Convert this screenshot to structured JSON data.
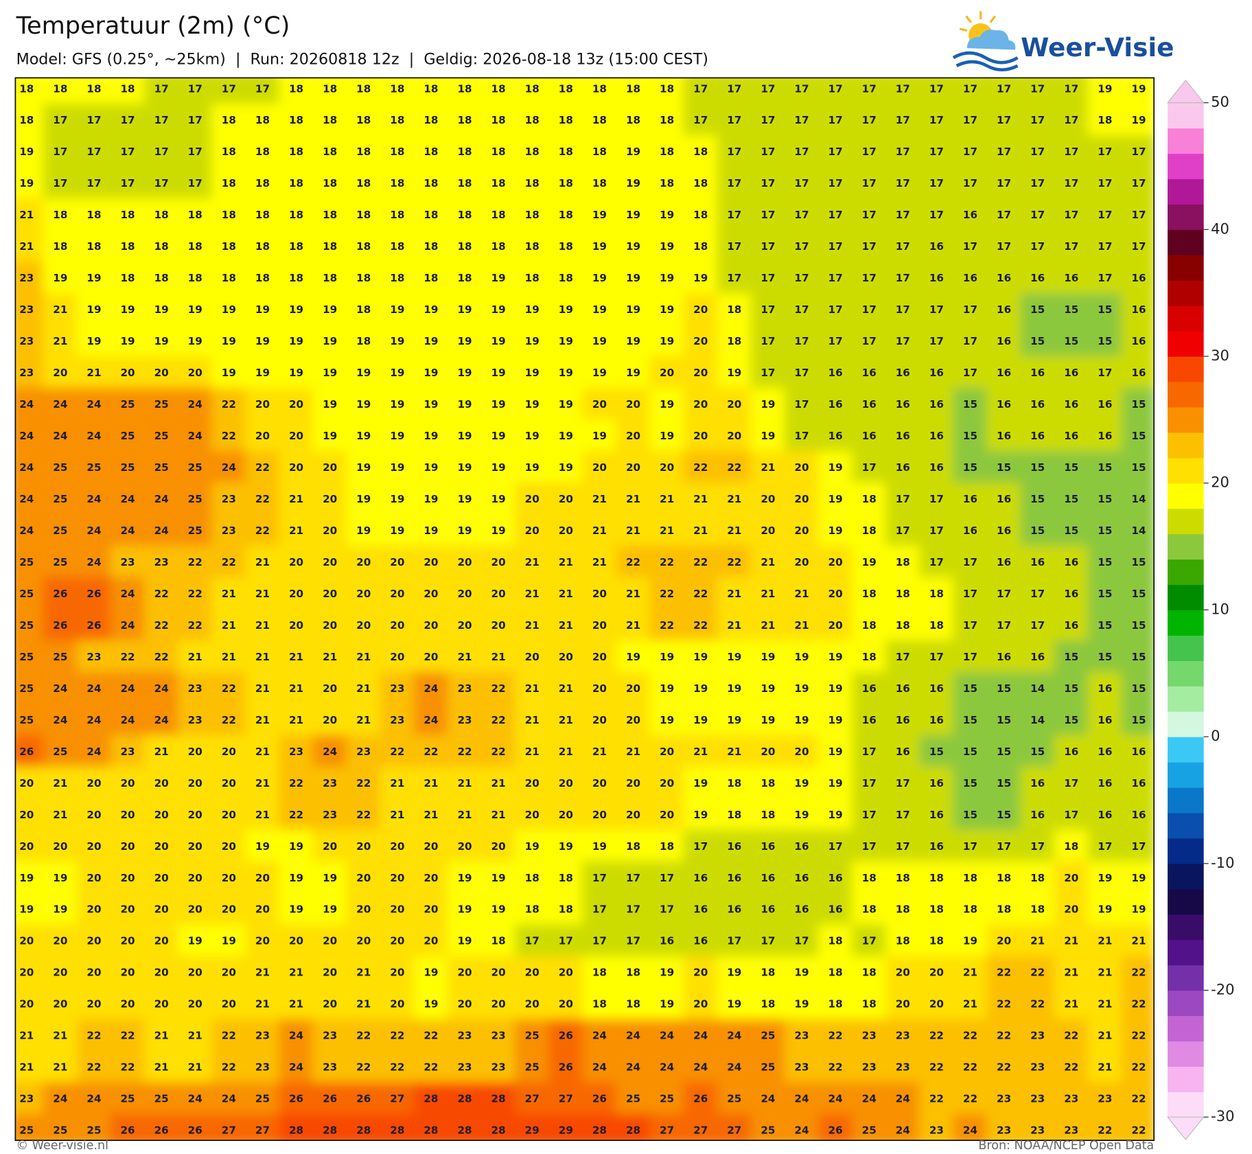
{
  "chart_data": {
    "type": "grid-map",
    "title": "Temperatuur (2m) (°C)",
    "subtitle": "Model: GFS (0.25°, ~25km)  |  Run: 20260818 12z  |  Geldig: 2026-08-18 13z (15:00 CEST)",
    "values": [
      [
        18,
        18,
        18,
        18,
        17,
        17,
        17,
        17,
        18,
        18,
        18,
        18,
        18,
        18,
        18,
        18,
        18,
        18,
        18,
        18,
        17,
        17,
        17,
        17,
        17,
        17,
        17,
        17,
        17,
        17,
        17,
        17,
        19,
        19
      ],
      [
        18,
        17,
        17,
        17,
        17,
        17,
        18,
        18,
        18,
        18,
        18,
        18,
        18,
        18,
        18,
        18,
        18,
        18,
        18,
        18,
        17,
        17,
        17,
        17,
        17,
        17,
        17,
        17,
        17,
        17,
        17,
        17,
        18,
        19
      ],
      [
        19,
        17,
        17,
        17,
        17,
        17,
        18,
        18,
        18,
        18,
        18,
        18,
        18,
        18,
        18,
        18,
        18,
        18,
        19,
        18,
        18,
        17,
        17,
        17,
        17,
        17,
        17,
        17,
        17,
        17,
        17,
        17,
        17,
        17
      ],
      [
        19,
        17,
        17,
        17,
        17,
        17,
        18,
        18,
        18,
        18,
        18,
        18,
        18,
        18,
        18,
        18,
        18,
        18,
        19,
        18,
        18,
        17,
        17,
        17,
        17,
        17,
        17,
        17,
        17,
        17,
        17,
        17,
        17,
        17
      ],
      [
        21,
        18,
        18,
        18,
        18,
        18,
        18,
        18,
        18,
        18,
        18,
        18,
        18,
        18,
        18,
        18,
        18,
        19,
        19,
        19,
        18,
        17,
        17,
        17,
        17,
        17,
        17,
        17,
        16,
        17,
        17,
        17,
        17,
        17
      ],
      [
        21,
        18,
        18,
        18,
        18,
        18,
        18,
        18,
        18,
        18,
        18,
        18,
        18,
        18,
        18,
        18,
        18,
        19,
        19,
        19,
        18,
        17,
        17,
        17,
        17,
        17,
        17,
        16,
        17,
        17,
        17,
        17,
        17,
        17
      ],
      [
        23,
        19,
        19,
        18,
        18,
        18,
        18,
        18,
        18,
        18,
        18,
        18,
        18,
        18,
        19,
        18,
        18,
        19,
        19,
        19,
        19,
        17,
        17,
        17,
        17,
        17,
        17,
        16,
        16,
        16,
        16,
        16,
        17,
        16
      ],
      [
        23,
        21,
        19,
        19,
        19,
        19,
        19,
        19,
        19,
        19,
        18,
        19,
        19,
        19,
        19,
        19,
        19,
        19,
        19,
        19,
        20,
        18,
        17,
        17,
        17,
        17,
        17,
        17,
        17,
        16,
        15,
        15,
        15,
        16
      ],
      [
        23,
        21,
        19,
        19,
        19,
        19,
        19,
        19,
        19,
        19,
        18,
        19,
        19,
        19,
        19,
        19,
        19,
        19,
        19,
        19,
        20,
        18,
        17,
        17,
        17,
        17,
        17,
        17,
        17,
        16,
        15,
        15,
        15,
        16
      ],
      [
        23,
        20,
        21,
        20,
        20,
        20,
        19,
        19,
        19,
        19,
        19,
        19,
        19,
        19,
        19,
        19,
        19,
        19,
        19,
        20,
        20,
        19,
        17,
        17,
        16,
        16,
        16,
        16,
        17,
        16,
        16,
        16,
        17,
        16
      ],
      [
        24,
        24,
        24,
        25,
        25,
        24,
        22,
        20,
        20,
        19,
        19,
        19,
        19,
        19,
        19,
        19,
        19,
        20,
        20,
        19,
        20,
        20,
        19,
        17,
        16,
        16,
        16,
        16,
        15,
        16,
        16,
        16,
        16,
        15
      ],
      [
        24,
        24,
        24,
        25,
        25,
        24,
        22,
        20,
        20,
        19,
        19,
        19,
        19,
        19,
        19,
        19,
        19,
        19,
        20,
        19,
        20,
        20,
        19,
        17,
        16,
        16,
        16,
        16,
        15,
        16,
        16,
        16,
        16,
        15
      ],
      [
        24,
        25,
        25,
        25,
        25,
        25,
        24,
        22,
        20,
        20,
        19,
        19,
        19,
        19,
        19,
        19,
        19,
        20,
        20,
        20,
        22,
        22,
        21,
        20,
        19,
        17,
        16,
        16,
        15,
        15,
        15,
        15,
        15,
        15
      ],
      [
        24,
        25,
        24,
        24,
        24,
        25,
        23,
        22,
        21,
        20,
        19,
        19,
        19,
        19,
        19,
        20,
        20,
        21,
        21,
        21,
        21,
        21,
        20,
        20,
        19,
        18,
        17,
        17,
        16,
        16,
        15,
        15,
        15,
        14
      ],
      [
        24,
        25,
        24,
        24,
        24,
        25,
        23,
        22,
        21,
        20,
        19,
        19,
        19,
        19,
        19,
        20,
        20,
        21,
        21,
        21,
        21,
        21,
        20,
        20,
        19,
        18,
        17,
        17,
        16,
        16,
        15,
        15,
        15,
        14
      ],
      [
        25,
        25,
        24,
        23,
        23,
        22,
        22,
        21,
        20,
        20,
        20,
        20,
        20,
        20,
        20,
        21,
        21,
        21,
        22,
        22,
        22,
        22,
        21,
        20,
        20,
        19,
        18,
        17,
        17,
        16,
        16,
        16,
        15,
        15
      ],
      [
        25,
        26,
        26,
        24,
        22,
        22,
        21,
        21,
        20,
        20,
        20,
        20,
        20,
        20,
        20,
        21,
        21,
        20,
        21,
        22,
        22,
        21,
        21,
        21,
        20,
        18,
        18,
        18,
        17,
        17,
        17,
        16,
        15,
        15
      ],
      [
        25,
        26,
        26,
        24,
        22,
        22,
        21,
        21,
        20,
        20,
        20,
        20,
        20,
        20,
        20,
        21,
        21,
        20,
        21,
        22,
        22,
        21,
        21,
        21,
        20,
        18,
        18,
        18,
        17,
        17,
        17,
        16,
        15,
        15
      ],
      [
        25,
        25,
        23,
        22,
        22,
        21,
        21,
        21,
        21,
        21,
        21,
        20,
        20,
        21,
        21,
        20,
        20,
        20,
        19,
        19,
        19,
        19,
        19,
        19,
        19,
        18,
        17,
        17,
        17,
        16,
        16,
        15,
        15,
        15
      ],
      [
        25,
        24,
        24,
        24,
        24,
        23,
        22,
        21,
        21,
        20,
        21,
        23,
        24,
        23,
        22,
        21,
        21,
        20,
        20,
        19,
        19,
        19,
        19,
        19,
        19,
        16,
        16,
        16,
        15,
        15,
        14,
        15,
        16,
        15
      ],
      [
        25,
        24,
        24,
        24,
        24,
        23,
        22,
        21,
        21,
        20,
        21,
        23,
        24,
        23,
        22,
        21,
        21,
        20,
        20,
        19,
        19,
        19,
        19,
        19,
        19,
        16,
        16,
        16,
        15,
        15,
        14,
        15,
        16,
        15
      ],
      [
        26,
        25,
        24,
        23,
        21,
        20,
        20,
        21,
        23,
        24,
        23,
        22,
        22,
        22,
        22,
        21,
        21,
        21,
        21,
        20,
        21,
        21,
        20,
        20,
        19,
        17,
        16,
        15,
        15,
        15,
        15,
        16,
        16,
        16
      ],
      [
        20,
        21,
        20,
        20,
        20,
        20,
        20,
        21,
        22,
        23,
        22,
        21,
        21,
        21,
        21,
        20,
        20,
        20,
        20,
        20,
        19,
        18,
        18,
        19,
        19,
        17,
        17,
        16,
        15,
        15,
        16,
        17,
        16,
        16
      ],
      [
        20,
        21,
        20,
        20,
        20,
        20,
        20,
        21,
        22,
        23,
        22,
        21,
        21,
        21,
        21,
        20,
        20,
        20,
        20,
        20,
        19,
        18,
        18,
        19,
        19,
        17,
        17,
        16,
        15,
        15,
        16,
        17,
        16,
        16
      ],
      [
        20,
        20,
        20,
        20,
        20,
        20,
        20,
        19,
        19,
        20,
        20,
        20,
        20,
        20,
        20,
        19,
        19,
        19,
        18,
        18,
        17,
        16,
        16,
        16,
        17,
        17,
        17,
        16,
        17,
        17,
        17,
        18,
        17,
        17
      ],
      [
        19,
        19,
        20,
        20,
        20,
        20,
        20,
        20,
        19,
        19,
        20,
        20,
        20,
        19,
        19,
        18,
        18,
        17,
        17,
        17,
        16,
        16,
        16,
        16,
        16,
        18,
        18,
        18,
        18,
        18,
        18,
        20,
        19,
        19
      ],
      [
        19,
        19,
        20,
        20,
        20,
        20,
        20,
        20,
        19,
        19,
        20,
        20,
        20,
        19,
        19,
        18,
        18,
        17,
        17,
        17,
        16,
        16,
        16,
        16,
        16,
        18,
        18,
        18,
        18,
        18,
        18,
        20,
        19,
        19
      ],
      [
        20,
        20,
        20,
        20,
        20,
        19,
        19,
        20,
        20,
        20,
        20,
        20,
        20,
        19,
        18,
        17,
        17,
        17,
        17,
        16,
        16,
        17,
        17,
        17,
        18,
        17,
        18,
        18,
        19,
        20,
        21,
        21,
        21,
        21
      ],
      [
        20,
        20,
        20,
        20,
        20,
        20,
        20,
        21,
        21,
        20,
        21,
        20,
        19,
        20,
        20,
        20,
        20,
        18,
        18,
        19,
        20,
        19,
        18,
        19,
        18,
        18,
        20,
        20,
        21,
        22,
        22,
        21,
        21,
        22
      ],
      [
        20,
        20,
        20,
        20,
        20,
        20,
        20,
        21,
        21,
        20,
        21,
        20,
        19,
        20,
        20,
        20,
        20,
        18,
        18,
        19,
        20,
        19,
        18,
        19,
        18,
        18,
        20,
        20,
        21,
        22,
        22,
        21,
        21,
        22
      ],
      [
        21,
        21,
        22,
        22,
        21,
        21,
        22,
        23,
        24,
        23,
        22,
        22,
        22,
        23,
        23,
        25,
        26,
        24,
        24,
        24,
        24,
        24,
        25,
        23,
        22,
        23,
        23,
        22,
        22,
        22,
        23,
        22,
        21,
        22
      ],
      [
        21,
        21,
        22,
        22,
        21,
        21,
        22,
        23,
        24,
        23,
        22,
        22,
        22,
        23,
        23,
        25,
        26,
        24,
        24,
        24,
        24,
        24,
        25,
        23,
        22,
        23,
        23,
        22,
        22,
        22,
        23,
        22,
        21,
        22
      ],
      [
        23,
        24,
        24,
        25,
        25,
        24,
        24,
        25,
        26,
        26,
        26,
        27,
        28,
        28,
        28,
        27,
        27,
        26,
        25,
        25,
        26,
        25,
        24,
        24,
        24,
        24,
        24,
        22,
        22,
        23,
        23,
        23,
        23,
        22
      ],
      [
        25,
        25,
        25,
        26,
        26,
        26,
        27,
        27,
        28,
        28,
        28,
        28,
        28,
        28,
        28,
        29,
        29,
        28,
        28,
        27,
        27,
        27,
        25,
        24,
        26,
        25,
        24,
        23,
        24,
        23,
        23,
        23,
        22,
        22
      ]
    ],
    "colorbar": {
      "lim": [
        -30,
        50
      ],
      "ticks": [
        -30,
        -20,
        -10,
        0,
        10,
        20,
        30,
        40,
        50
      ],
      "colors": [
        "#fcdcf8",
        "#f8b4f0",
        "#e08ae4",
        "#c464d4",
        "#9c48c0",
        "#7430a8",
        "#52128a",
        "#3a0c6a",
        "#170848",
        "#0a1560",
        "#042a8a",
        "#0a4fae",
        "#0a78c8",
        "#17a3e3",
        "#3cc8f5",
        "#d4f7e0",
        "#a4ec9f",
        "#74d86c",
        "#44c44c",
        "#00b400",
        "#008c00",
        "#3aa800",
        "#8cc83c",
        "#cddc00",
        "#ffff00",
        "#ffe000",
        "#fcc000",
        "#f89000",
        "#f86800",
        "#f84800",
        "#f00000",
        "#d80000",
        "#b00000",
        "#880000",
        "#600020",
        "#8a1060",
        "#b01898",
        "#e040c8",
        "#f880d8",
        "#fac8ec"
      ]
    }
  },
  "logo": "Weer-Visie",
  "footer": {
    "left": "© Weer-visie.nl",
    "right": "Bron: NOAA/NCEP Open Data"
  }
}
